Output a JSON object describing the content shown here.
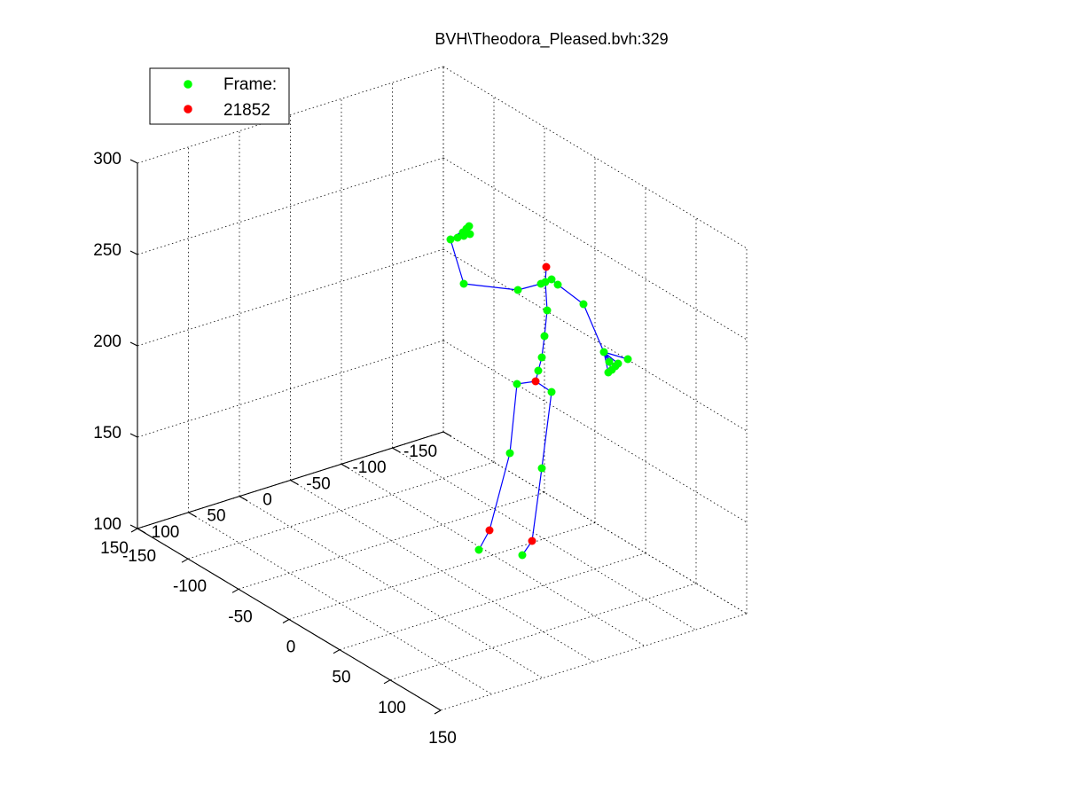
{
  "chart_data": {
    "type": "scatter",
    "title": "BVH\\Theodora_Pleased.bvh:329",
    "legend": {
      "placement": "top-left",
      "entries": [
        {
          "label": "Frame:",
          "color": "#00ff00"
        },
        {
          "label": "21852",
          "color": "#ff0000"
        }
      ]
    },
    "grid": true,
    "xlim": [
      -150,
      150
    ],
    "ylim": [
      -150,
      150
    ],
    "zlim": [
      100,
      300
    ],
    "x_ticks": [
      "-150",
      "-100",
      "-50",
      "0",
      "50",
      "100",
      "150"
    ],
    "y_ticks": [
      "-150",
      "-100",
      "-50",
      "0",
      "50",
      "100",
      "150"
    ],
    "z_ticks": [
      "100",
      "150",
      "200",
      "250",
      "300"
    ],
    "colors": {
      "joint": "#00ff00",
      "end_effector": "#ff0000",
      "bone": "#0000ff"
    }
  }
}
